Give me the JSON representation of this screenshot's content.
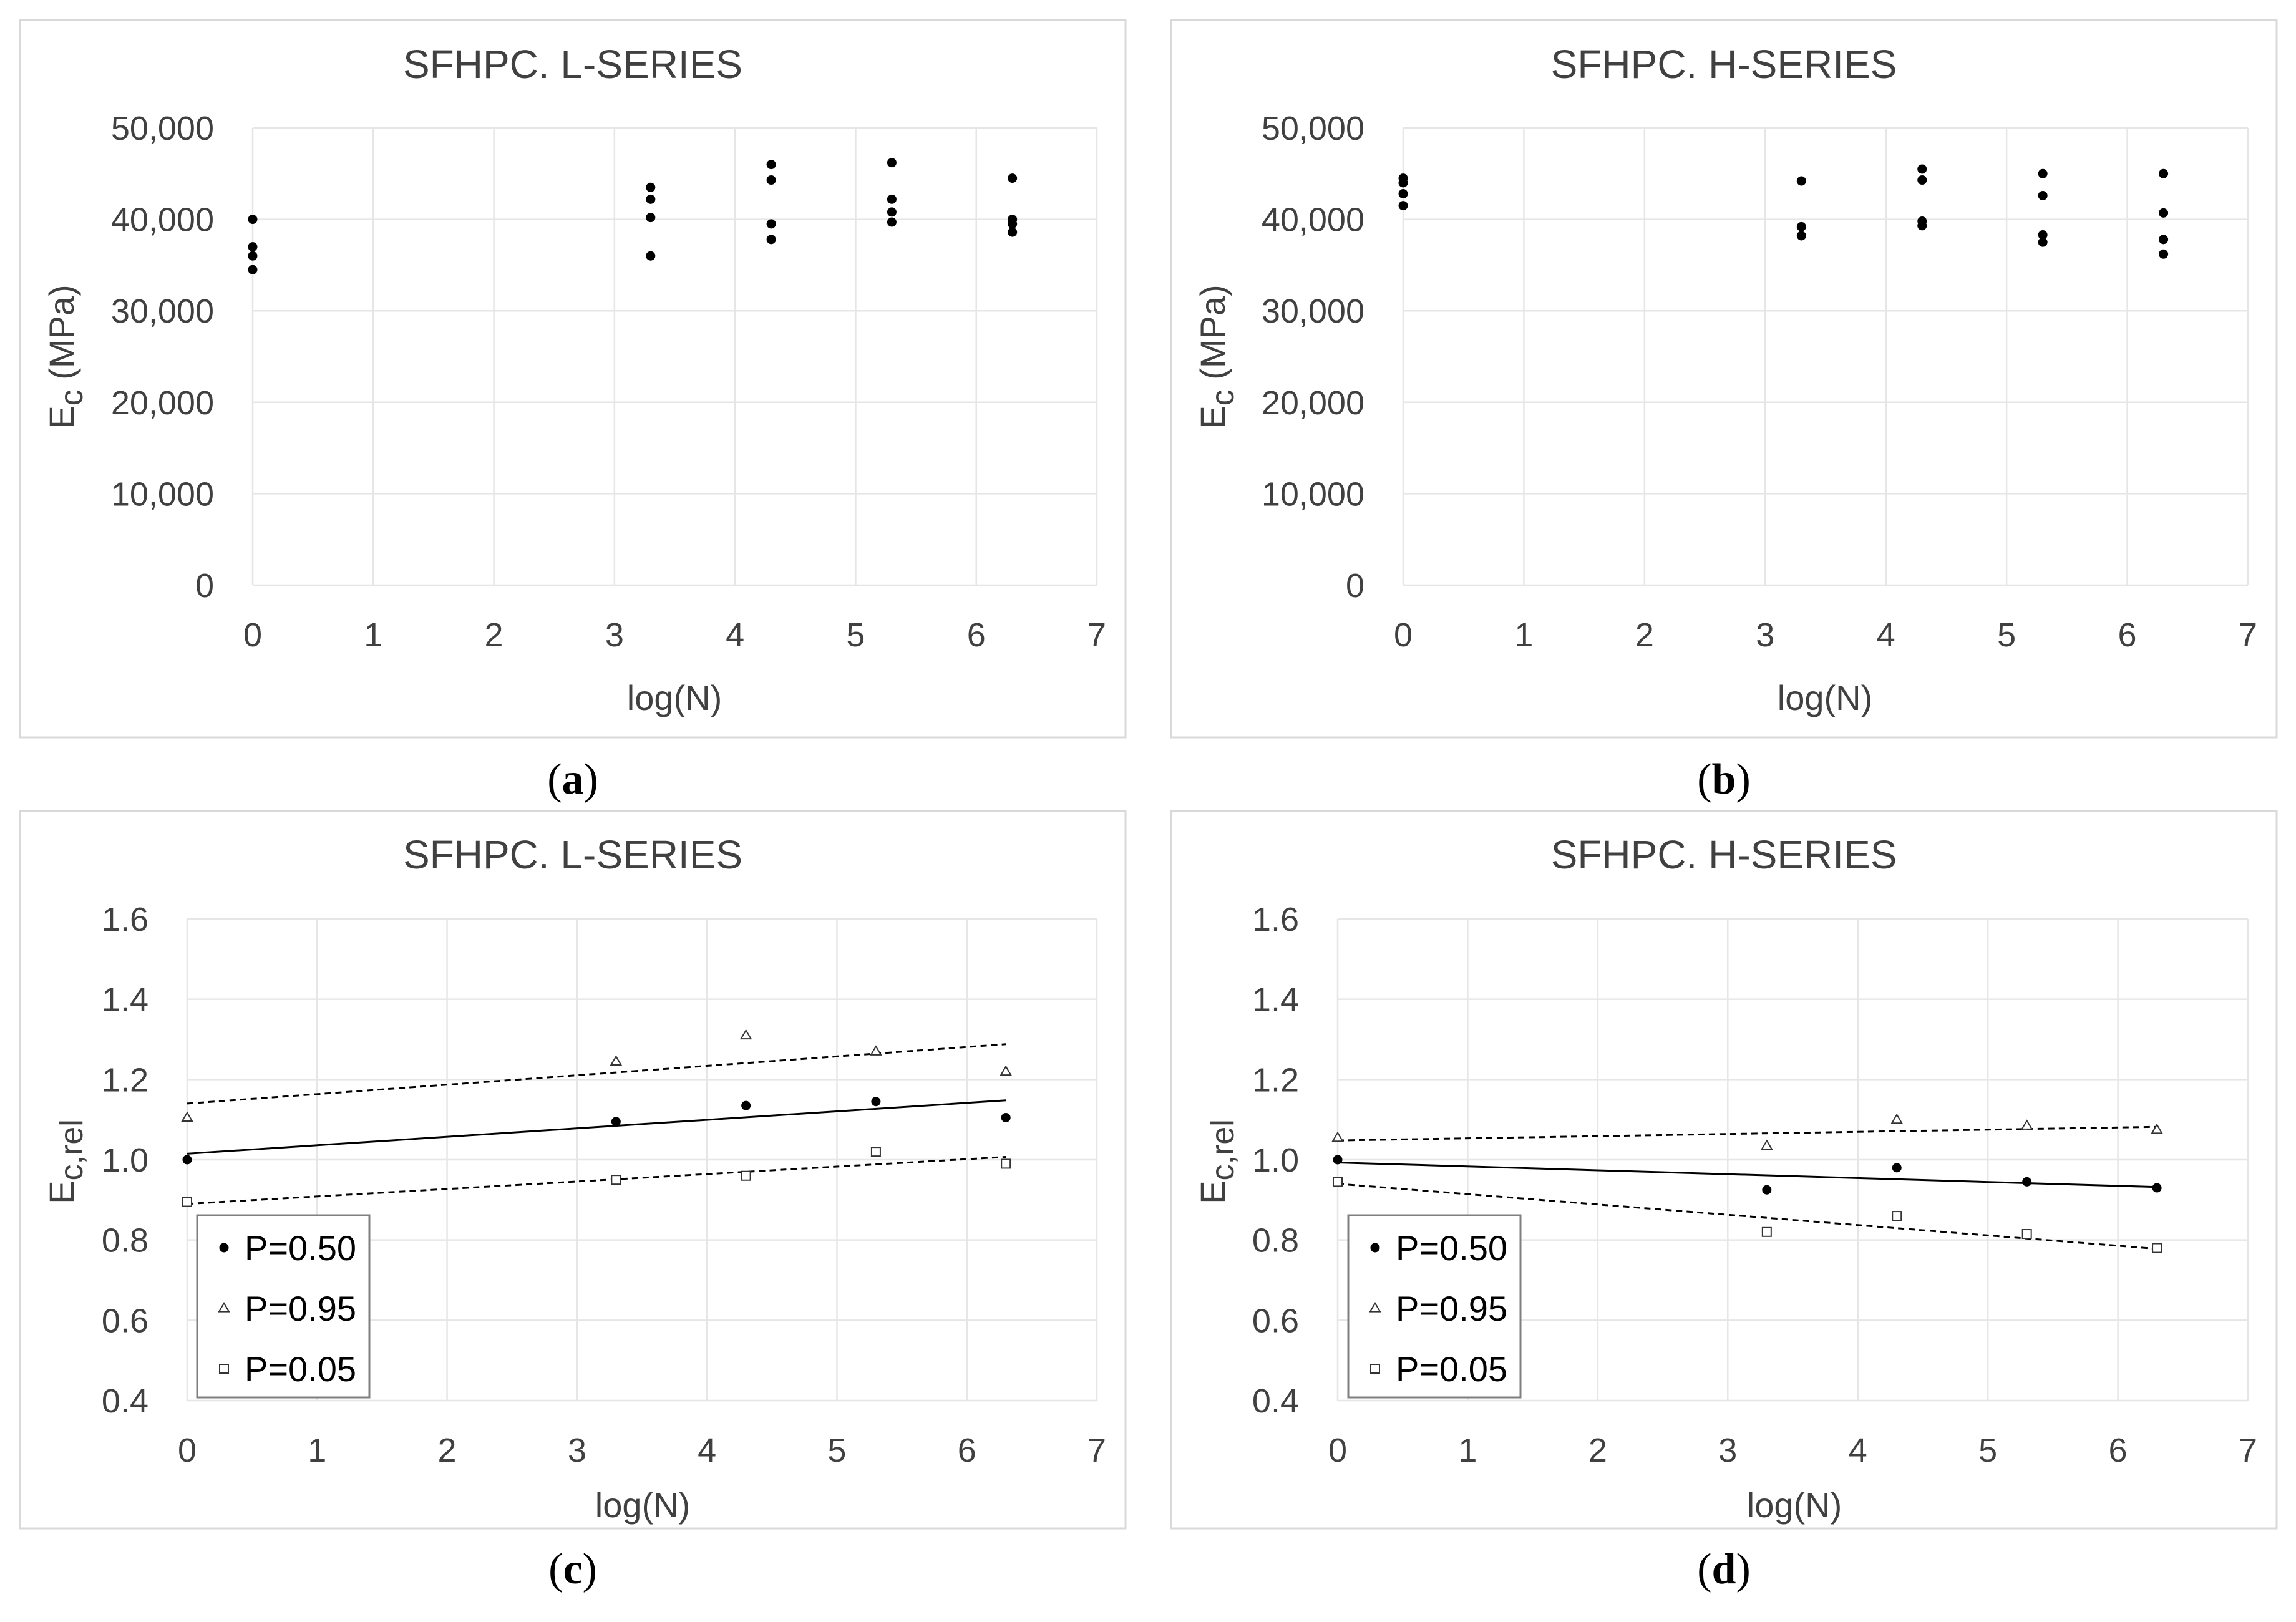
{
  "chart_data": [
    {
      "id": "a",
      "type": "scatter",
      "title": "SFHPC. L-SERIES",
      "xlabel": "log(N)",
      "ylabel_main": "E",
      "ylabel_sub": "c",
      "ylabel_suffix": " (MPa)",
      "caption": "a",
      "xlim": [
        0,
        7
      ],
      "ylim": [
        0,
        50000
      ],
      "xticks": [
        "0",
        "1",
        "2",
        "3",
        "4",
        "5",
        "6",
        "7"
      ],
      "yticks": [
        "0",
        "10,000",
        "20,000",
        "30,000",
        "40,000",
        "50,000"
      ],
      "series": [
        {
          "name": "Ec",
          "marker": "dot",
          "x": [
            0,
            0,
            0,
            0,
            3.3,
            3.3,
            3.3,
            3.3,
            4.3,
            4.3,
            4.3,
            4.3,
            5.3,
            5.3,
            5.3,
            5.3,
            6.3,
            6.3,
            6.3,
            6.3
          ],
          "y": [
            40000,
            37000,
            36000,
            34500,
            43500,
            42200,
            40200,
            36000,
            46000,
            44300,
            39500,
            37800,
            46200,
            42200,
            40800,
            39700,
            44500,
            40000,
            39500,
            38600
          ]
        }
      ]
    },
    {
      "id": "b",
      "type": "scatter",
      "title": "SFHPC. H-SERIES",
      "xlabel": "log(N)",
      "ylabel_main": "E",
      "ylabel_sub": "c",
      "ylabel_suffix": " (MPa)",
      "caption": "b",
      "xlim": [
        0,
        7
      ],
      "ylim": [
        0,
        50000
      ],
      "xticks": [
        "0",
        "1",
        "2",
        "3",
        "4",
        "5",
        "6",
        "7"
      ],
      "yticks": [
        "0",
        "10,000",
        "20,000",
        "30,000",
        "40,000",
        "50,000"
      ],
      "series": [
        {
          "name": "Ec",
          "marker": "dot",
          "x": [
            0,
            0,
            0,
            0,
            3.3,
            3.3,
            3.3,
            4.3,
            4.3,
            4.3,
            4.3,
            5.3,
            5.3,
            5.3,
            5.3,
            6.3,
            6.3,
            6.3,
            6.3
          ],
          "y": [
            44500,
            44000,
            42800,
            41500,
            44200,
            39200,
            38200,
            45500,
            44300,
            39800,
            39300,
            45000,
            42600,
            38300,
            37500,
            45000,
            40700,
            37800,
            36200
          ]
        }
      ]
    },
    {
      "id": "c",
      "type": "scatter",
      "title": "SFHPC. L-SERIES",
      "xlabel": "log(N)",
      "ylabel_main": "E",
      "ylabel_sub": "c,rel",
      "ylabel_suffix": "",
      "caption": "c",
      "xlim": [
        0,
        7
      ],
      "ylim": [
        0.4,
        1.6
      ],
      "xticks": [
        "0",
        "1",
        "2",
        "3",
        "4",
        "5",
        "6",
        "7"
      ],
      "yticks": [
        "0.4",
        "0.6",
        "0.8",
        "1.0",
        "1.2",
        "1.4",
        "1.6"
      ],
      "legend_position": "bottom-left",
      "series": [
        {
          "name": "P=0.50",
          "marker": "dot",
          "x": [
            0,
            3.3,
            4.3,
            5.3,
            6.3
          ],
          "y": [
            1.0,
            1.095,
            1.135,
            1.145,
            1.105
          ],
          "trend": {
            "style": "solid",
            "x": [
              0,
              6.3
            ],
            "y": [
              1.015,
              1.148
            ]
          }
        },
        {
          "name": "P=0.95",
          "marker": "triangle",
          "x": [
            0,
            3.3,
            4.3,
            5.3,
            6.3
          ],
          "y": [
            1.105,
            1.245,
            1.31,
            1.27,
            1.22
          ],
          "trend": {
            "style": "dashed",
            "x": [
              0,
              6.3
            ],
            "y": [
              1.14,
              1.288
            ]
          }
        },
        {
          "name": "P=0.05",
          "marker": "square",
          "x": [
            0,
            3.3,
            4.3,
            5.3,
            6.3
          ],
          "y": [
            0.895,
            0.95,
            0.96,
            1.02,
            0.99
          ],
          "trend": {
            "style": "dashed",
            "x": [
              0,
              6.3
            ],
            "y": [
              0.89,
              1.007
            ]
          }
        }
      ]
    },
    {
      "id": "d",
      "type": "scatter",
      "title": "SFHPC. H-SERIES",
      "xlabel": "log(N)",
      "ylabel_main": "E",
      "ylabel_sub": "c,rel",
      "ylabel_suffix": "",
      "caption": "d",
      "xlim": [
        0,
        7
      ],
      "ylim": [
        0.4,
        1.6
      ],
      "xticks": [
        "0",
        "1",
        "2",
        "3",
        "4",
        "5",
        "6",
        "7"
      ],
      "yticks": [
        "0.4",
        "0.6",
        "0.8",
        "1.0",
        "1.2",
        "1.4",
        "1.6"
      ],
      "legend_position": "bottom-left",
      "series": [
        {
          "name": "P=0.50",
          "marker": "dot",
          "x": [
            0,
            3.3,
            4.3,
            5.3,
            6.3
          ],
          "y": [
            1.0,
            0.925,
            0.98,
            0.945,
            0.93
          ],
          "trend": {
            "style": "solid",
            "x": [
              0,
              6.3
            ],
            "y": [
              0.993,
              0.932
            ]
          }
        },
        {
          "name": "P=0.95",
          "marker": "triangle",
          "x": [
            0,
            3.3,
            4.3,
            5.3,
            6.3
          ],
          "y": [
            1.055,
            1.035,
            1.1,
            1.085,
            1.075
          ],
          "trend": {
            "style": "dashed",
            "x": [
              0,
              6.3
            ],
            "y": [
              1.048,
              1.082
            ]
          }
        },
        {
          "name": "P=0.05",
          "marker": "square",
          "x": [
            0,
            3.3,
            4.3,
            5.3,
            6.3
          ],
          "y": [
            0.945,
            0.82,
            0.86,
            0.815,
            0.78
          ],
          "trend": {
            "style": "dashed",
            "x": [
              0,
              6.3
            ],
            "y": [
              0.94,
              0.778
            ]
          }
        }
      ]
    }
  ]
}
